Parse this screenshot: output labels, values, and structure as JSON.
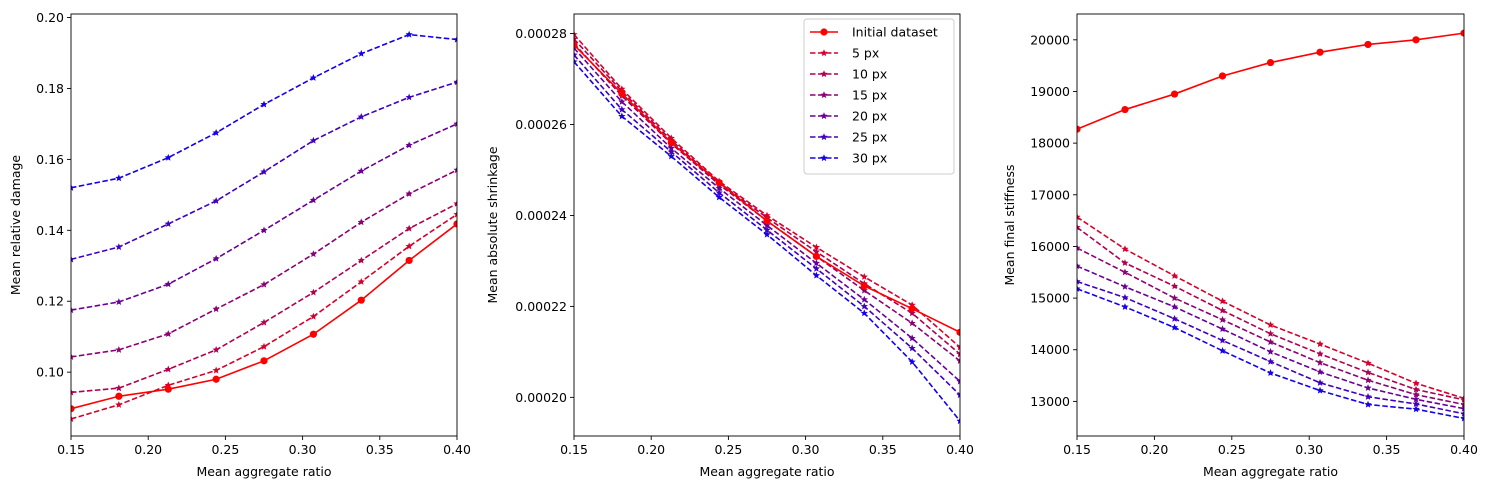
{
  "chart_data": [
    {
      "type": "line",
      "xlabel": "Mean aggregate ratio",
      "ylabel": "Mean relative damage",
      "xlim": [
        0.15,
        0.4
      ],
      "ylim": [
        0.082,
        0.201
      ],
      "xticks": [
        0.15,
        0.2,
        0.25,
        0.3,
        0.35,
        0.4
      ],
      "xtick_labels": [
        "0.15",
        "0.20",
        "0.25",
        "0.30",
        "0.35",
        "0.40"
      ],
      "yticks": [
        0.1,
        0.12,
        0.14,
        0.16,
        0.18,
        0.2
      ],
      "ytick_labels": [
        "0.10",
        "0.12",
        "0.14",
        "0.16",
        "0.18",
        "0.20"
      ],
      "grid": false,
      "x": [
        0.15,
        0.181,
        0.213,
        0.244,
        0.275,
        0.307,
        0.338,
        0.369,
        0.4
      ],
      "series": [
        {
          "name": "Initial dataset",
          "color": "#ff0000",
          "style": "solid",
          "marker": "circle",
          "values": [
            0.0897,
            0.0932,
            0.0952,
            0.098,
            0.1032,
            0.1107,
            0.1203,
            0.1315,
            0.1418
          ]
        },
        {
          "name": "5 px",
          "color": "#d6002b",
          "style": "dashed",
          "marker": "star",
          "values": [
            0.0868,
            0.0908,
            0.0963,
            0.1005,
            0.1072,
            0.1157,
            0.1255,
            0.1355,
            0.1445
          ]
        },
        {
          "name": "10 px",
          "color": "#b0004f",
          "style": "dashed",
          "marker": "star",
          "values": [
            0.0943,
            0.0955,
            0.1008,
            0.1063,
            0.114,
            0.1225,
            0.1315,
            0.1405,
            0.1475
          ]
        },
        {
          "name": "15 px",
          "color": "#8c0073",
          "style": "dashed",
          "marker": "star",
          "values": [
            0.1043,
            0.1063,
            0.1108,
            0.1178,
            0.1247,
            0.1333,
            0.1423,
            0.1503,
            0.157
          ]
        },
        {
          "name": "20 px",
          "color": "#690096",
          "style": "dashed",
          "marker": "star",
          "values": [
            0.1175,
            0.1198,
            0.1248,
            0.132,
            0.14,
            0.1485,
            0.1567,
            0.164,
            0.17
          ]
        },
        {
          "name": "25 px",
          "color": "#4100be",
          "style": "dashed",
          "marker": "star",
          "values": [
            0.1318,
            0.1353,
            0.1418,
            0.1483,
            0.1565,
            0.1653,
            0.172,
            0.1775,
            0.1818
          ]
        },
        {
          "name": "30 px",
          "color": "#1400eb",
          "style": "dashed",
          "marker": "star",
          "values": [
            0.152,
            0.1547,
            0.1605,
            0.1675,
            0.1755,
            0.183,
            0.1898,
            0.1952,
            0.1938
          ]
        }
      ]
    },
    {
      "type": "line",
      "xlabel": "Mean aggregate ratio",
      "ylabel": "Mean absolute shrinkage",
      "xlim": [
        0.15,
        0.4
      ],
      "ylim": [
        0.0001915,
        0.0002843
      ],
      "xticks": [
        0.15,
        0.2,
        0.25,
        0.3,
        0.35,
        0.4
      ],
      "xtick_labels": [
        "0.15",
        "0.20",
        "0.25",
        "0.30",
        "0.35",
        "0.40"
      ],
      "yticks": [
        0.0002,
        0.00022,
        0.00024,
        0.00026,
        0.00028
      ],
      "ytick_labels": [
        "0.00020",
        "0.00022",
        "0.00024",
        "0.00026",
        "0.00028"
      ],
      "grid": false,
      "legend": {
        "position": "top-right",
        "entries": [
          "Initial dataset",
          "5 px",
          "10 px",
          "15 px",
          "20 px",
          "25 px",
          "30 px"
        ]
      },
      "x": [
        0.15,
        0.181,
        0.213,
        0.244,
        0.275,
        0.307,
        0.338,
        0.369,
        0.4
      ],
      "series": [
        {
          "name": "Initial dataset",
          "color": "#ff0000",
          "style": "solid",
          "marker": "circle",
          "values": [
            0.0002775,
            0.0002668,
            0.000256,
            0.0002472,
            0.0002388,
            0.000231,
            0.0002245,
            0.0002195,
            0.0002143
          ]
        },
        {
          "name": "5 px",
          "color": "#d6002b",
          "style": "dashed",
          "marker": "star",
          "values": [
            0.0002798,
            0.0002678,
            0.000257,
            0.0002475,
            0.00024,
            0.000233,
            0.0002265,
            0.0002203,
            0.000211
          ]
        },
        {
          "name": "10 px",
          "color": "#b0004f",
          "style": "dashed",
          "marker": "star",
          "values": [
            0.0002788,
            0.0002673,
            0.0002565,
            0.0002472,
            0.0002395,
            0.000232,
            0.000225,
            0.0002185,
            0.0002095
          ]
        },
        {
          "name": "15 px",
          "color": "#8c0073",
          "style": "dashed",
          "marker": "star",
          "values": [
            0.0002778,
            0.0002663,
            0.0002558,
            0.0002468,
            0.0002388,
            0.000231,
            0.0002235,
            0.0002163,
            0.000208
          ]
        },
        {
          "name": "20 px",
          "color": "#690096",
          "style": "dashed",
          "marker": "star",
          "values": [
            0.0002768,
            0.000265,
            0.0002548,
            0.000246,
            0.0002378,
            0.0002295,
            0.0002215,
            0.000213,
            0.0002035
          ]
        },
        {
          "name": "25 px",
          "color": "#4100be",
          "style": "dashed",
          "marker": "star",
          "values": [
            0.0002753,
            0.0002633,
            0.000254,
            0.000245,
            0.0002368,
            0.0002283,
            0.00022,
            0.0002108,
            0.0002005
          ]
        },
        {
          "name": "30 px",
          "color": "#1400eb",
          "style": "dashed",
          "marker": "star",
          "values": [
            0.0002738,
            0.0002618,
            0.000253,
            0.000244,
            0.0002358,
            0.0002268,
            0.0002185,
            0.0002078,
            0.0001948
          ]
        }
      ]
    },
    {
      "type": "line",
      "xlabel": "Mean aggregate ratio",
      "ylabel": "Mean final stiffness",
      "xlim": [
        0.15,
        0.4
      ],
      "ylim": [
        12330,
        20500
      ],
      "xticks": [
        0.15,
        0.2,
        0.25,
        0.3,
        0.35,
        0.4
      ],
      "xtick_labels": [
        "0.15",
        "0.20",
        "0.25",
        "0.30",
        "0.35",
        "0.40"
      ],
      "yticks": [
        13000,
        14000,
        15000,
        16000,
        17000,
        18000,
        19000,
        20000
      ],
      "ytick_labels": [
        "13000",
        "14000",
        "15000",
        "16000",
        "17000",
        "18000",
        "19000",
        "20000"
      ],
      "grid": false,
      "x": [
        0.15,
        0.181,
        0.213,
        0.244,
        0.275,
        0.307,
        0.338,
        0.369,
        0.4
      ],
      "series": [
        {
          "name": "Initial dataset",
          "color": "#ff0000",
          "style": "solid",
          "marker": "circle",
          "values": [
            18270,
            18650,
            18950,
            19300,
            19560,
            19760,
            19910,
            20000,
            20130
          ]
        },
        {
          "name": "5 px",
          "color": "#d6002b",
          "style": "dashed",
          "marker": "star",
          "values": [
            16570,
            15950,
            15430,
            14940,
            14480,
            14110,
            13740,
            13350,
            13060
          ]
        },
        {
          "name": "10 px",
          "color": "#b0004f",
          "style": "dashed",
          "marker": "star",
          "values": [
            16370,
            15680,
            15230,
            14760,
            14310,
            13920,
            13560,
            13230,
            13030
          ]
        },
        {
          "name": "15 px",
          "color": "#8c0073",
          "style": "dashed",
          "marker": "star",
          "values": [
            15970,
            15500,
            15000,
            14580,
            14150,
            13750,
            13410,
            13130,
            12940
          ]
        },
        {
          "name": "20 px",
          "color": "#690096",
          "style": "dashed",
          "marker": "star",
          "values": [
            15620,
            15220,
            14830,
            14400,
            13960,
            13570,
            13260,
            13040,
            12860
          ]
        },
        {
          "name": "25 px",
          "color": "#4100be",
          "style": "dashed",
          "marker": "star",
          "values": [
            15320,
            15010,
            14600,
            14180,
            13770,
            13360,
            13090,
            12950,
            12760
          ]
        },
        {
          "name": "30 px",
          "color": "#1400eb",
          "style": "dashed",
          "marker": "star",
          "values": [
            15180,
            14830,
            14430,
            13980,
            13550,
            13210,
            12940,
            12850,
            12670
          ]
        }
      ]
    }
  ]
}
